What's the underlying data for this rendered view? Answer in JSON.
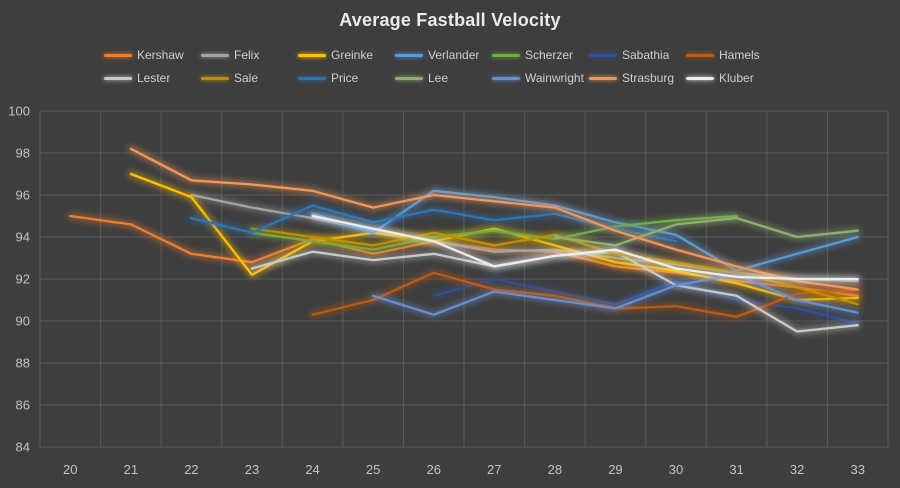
{
  "title": "Average Fastball Velocity",
  "colors": {
    "background": "#3e3e3e",
    "gridline": "#595959",
    "tick_text": "#c4c4c4",
    "title_text": "#eaeaea",
    "legend_text": "#cfcfcf"
  },
  "chart_data": {
    "type": "line",
    "title": "Average Fastball Velocity",
    "xlabel": "",
    "ylabel": "",
    "x": [
      20,
      21,
      22,
      23,
      24,
      25,
      26,
      27,
      28,
      29,
      30,
      31,
      32,
      33
    ],
    "ylim": [
      84,
      100
    ],
    "ytick_step": 2,
    "yticks": [
      84,
      86,
      88,
      90,
      92,
      94,
      96,
      98,
      100
    ],
    "grid": true,
    "legend_position": "top",
    "legend_rows": [
      [
        "Kershaw",
        "Felix",
        "Greinke",
        "Verlander",
        "Scherzer",
        "Sabathia",
        "Hamels"
      ],
      [
        "Lester",
        "Sale",
        "Price",
        "Lee",
        "Wainwright",
        "Strasburg",
        "Kluber"
      ]
    ],
    "series": [
      {
        "name": "Kershaw",
        "color": "#ED7D31",
        "values": [
          95.0,
          94.6,
          93.2,
          92.8,
          93.9,
          93.2,
          93.8,
          93.4,
          93.3,
          92.6,
          92.3,
          91.9,
          91.6,
          91.2
        ]
      },
      {
        "name": "Felix",
        "color": "#A5A5A5",
        "values": [
          null,
          null,
          96.0,
          95.4,
          94.9,
          94.3,
          93.8,
          93.3,
          93.4,
          93.0,
          92.7,
          92.3,
          92.0,
          91.9
        ]
      },
      {
        "name": "Greinke",
        "color": "#FFC000",
        "values": [
          null,
          97.0,
          95.9,
          92.2,
          93.8,
          94.2,
          93.8,
          94.4,
          93.6,
          92.8,
          92.4,
          91.8,
          91.0,
          91.1
        ]
      },
      {
        "name": "Verlander",
        "color": "#5B9BD5",
        "values": [
          null,
          null,
          null,
          null,
          95.1,
          94.2,
          96.2,
          95.9,
          95.5,
          94.7,
          94.1,
          92.4,
          93.2,
          94.0
        ]
      },
      {
        "name": "Scherzer",
        "color": "#70AD47",
        "values": [
          null,
          null,
          null,
          94.2,
          93.8,
          93.4,
          94.0,
          94.3,
          93.9,
          94.5,
          94.8,
          95.0,
          null,
          null
        ]
      },
      {
        "name": "Sabathia",
        "color": "#31508F",
        "values": [
          null,
          null,
          null,
          null,
          null,
          null,
          91.2,
          92.0,
          91.4,
          90.8,
          91.9,
          91.0,
          90.6,
          89.9
        ]
      },
      {
        "name": "Hamels",
        "color": "#BC5A17",
        "values": [
          null,
          null,
          null,
          null,
          90.3,
          91.0,
          92.3,
          91.5,
          91.2,
          90.6,
          90.7,
          90.2,
          91.3,
          91.5
        ]
      },
      {
        "name": "Lester",
        "color": "#C9C9C9",
        "values": [
          null,
          null,
          null,
          92.5,
          93.3,
          92.9,
          93.2,
          92.6,
          93.1,
          93.3,
          91.7,
          91.2,
          89.5,
          89.8
        ]
      },
      {
        "name": "Sale",
        "color": "#BF9000",
        "values": [
          null,
          null,
          null,
          94.4,
          94.0,
          93.6,
          94.2,
          93.6,
          94.1,
          93.2,
          92.8,
          92.3,
          91.6,
          90.8
        ]
      },
      {
        "name": "Price",
        "color": "#2E75B6",
        "values": [
          null,
          null,
          94.9,
          94.2,
          95.5,
          94.7,
          95.3,
          94.8,
          95.1,
          94.4,
          93.8,
          null,
          null,
          null
        ]
      },
      {
        "name": "Lee",
        "color": "#8FAF6F",
        "values": [
          null,
          null,
          null,
          null,
          null,
          null,
          null,
          null,
          94.0,
          93.6,
          94.6,
          94.9,
          94.0,
          94.3
        ]
      },
      {
        "name": "Wainwright",
        "color": "#698ED0",
        "values": [
          null,
          null,
          null,
          null,
          null,
          91.2,
          90.3,
          91.4,
          91.0,
          90.6,
          91.7,
          92.2,
          91.0,
          90.4
        ]
      },
      {
        "name": "Strasburg",
        "color": "#F1975A",
        "values": [
          null,
          98.2,
          96.7,
          96.5,
          96.2,
          95.4,
          96.0,
          95.7,
          95.4,
          94.3,
          93.4,
          92.6,
          91.9,
          91.5
        ]
      },
      {
        "name": "Kluber",
        "color": "#EDEDED",
        "values": [
          null,
          null,
          null,
          null,
          95.0,
          94.4,
          93.8,
          92.6,
          93.1,
          93.4,
          92.5,
          92.1,
          92.0,
          92.0
        ]
      }
    ]
  }
}
